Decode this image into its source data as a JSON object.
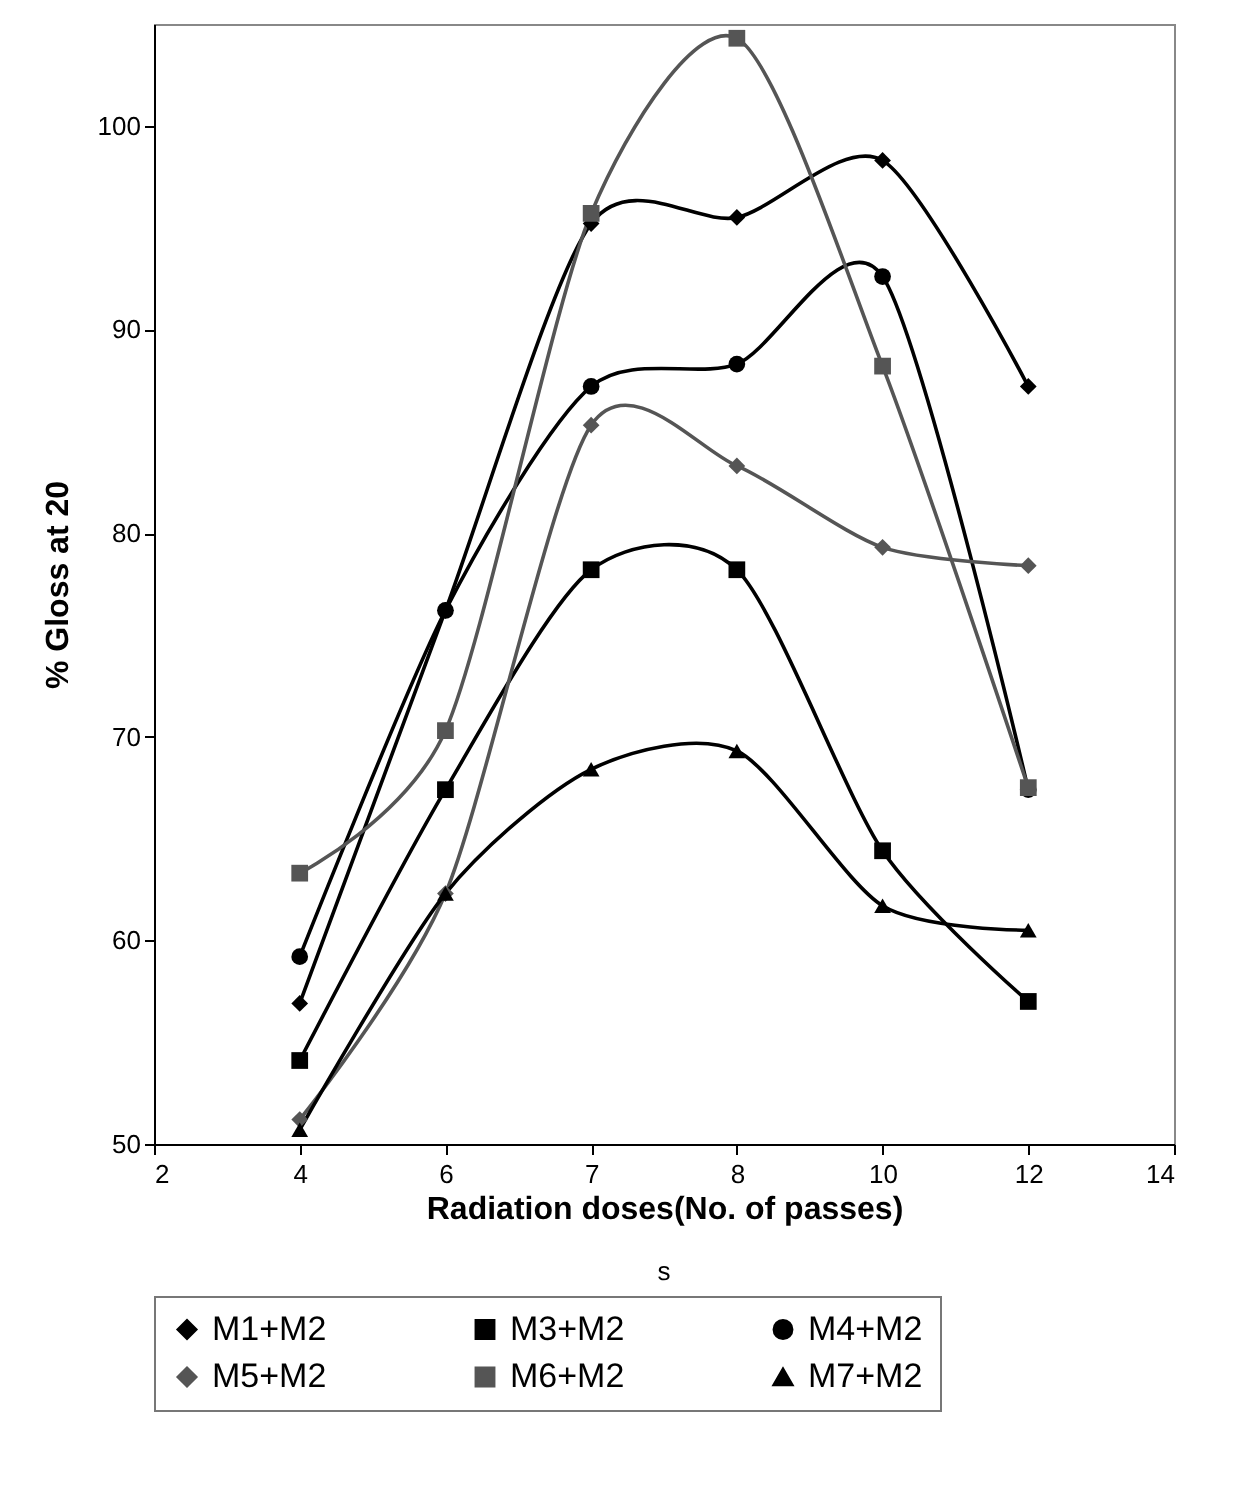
{
  "chart_data": {
    "type": "line",
    "xlabel": "Radiation doses(No. of passes)",
    "ylabel": "% Gloss at 20",
    "annotations": [
      "s"
    ],
    "categories": [
      "2",
      "4",
      "6",
      "7",
      "8",
      "10",
      "12",
      "14"
    ],
    "ylim": [
      50,
      105
    ],
    "yticks": [
      50,
      60,
      70,
      80,
      90,
      100
    ],
    "grid": false,
    "legend": "bottom",
    "series": [
      {
        "name": "M1+M2",
        "color": "#000000",
        "marker": "diamond",
        "values": [
          null,
          56.9,
          76.2,
          95.2,
          95.5,
          98.3,
          87.2,
          null
        ]
      },
      {
        "name": "M3+M2",
        "color": "#000000",
        "marker": "square",
        "values": [
          null,
          54.1,
          67.4,
          78.2,
          78.2,
          64.4,
          57.0,
          null
        ]
      },
      {
        "name": "M4+M2",
        "color": "#000000",
        "marker": "circle",
        "values": [
          null,
          59.2,
          76.2,
          87.2,
          88.3,
          92.6,
          67.4,
          null
        ]
      },
      {
        "name": "M5+M2",
        "color": "#555555",
        "marker": "diamond",
        "values": [
          null,
          51.2,
          62.3,
          85.3,
          83.3,
          79.3,
          78.4,
          null
        ]
      },
      {
        "name": "M6+M2",
        "color": "#555555",
        "marker": "square",
        "values": [
          null,
          63.3,
          70.3,
          95.7,
          104.3,
          88.2,
          67.5,
          null
        ]
      },
      {
        "name": "M7+M2",
        "color": "#000000",
        "marker": "triangle",
        "values": [
          null,
          50.7,
          62.3,
          68.4,
          69.3,
          61.7,
          60.5,
          null
        ]
      }
    ]
  }
}
